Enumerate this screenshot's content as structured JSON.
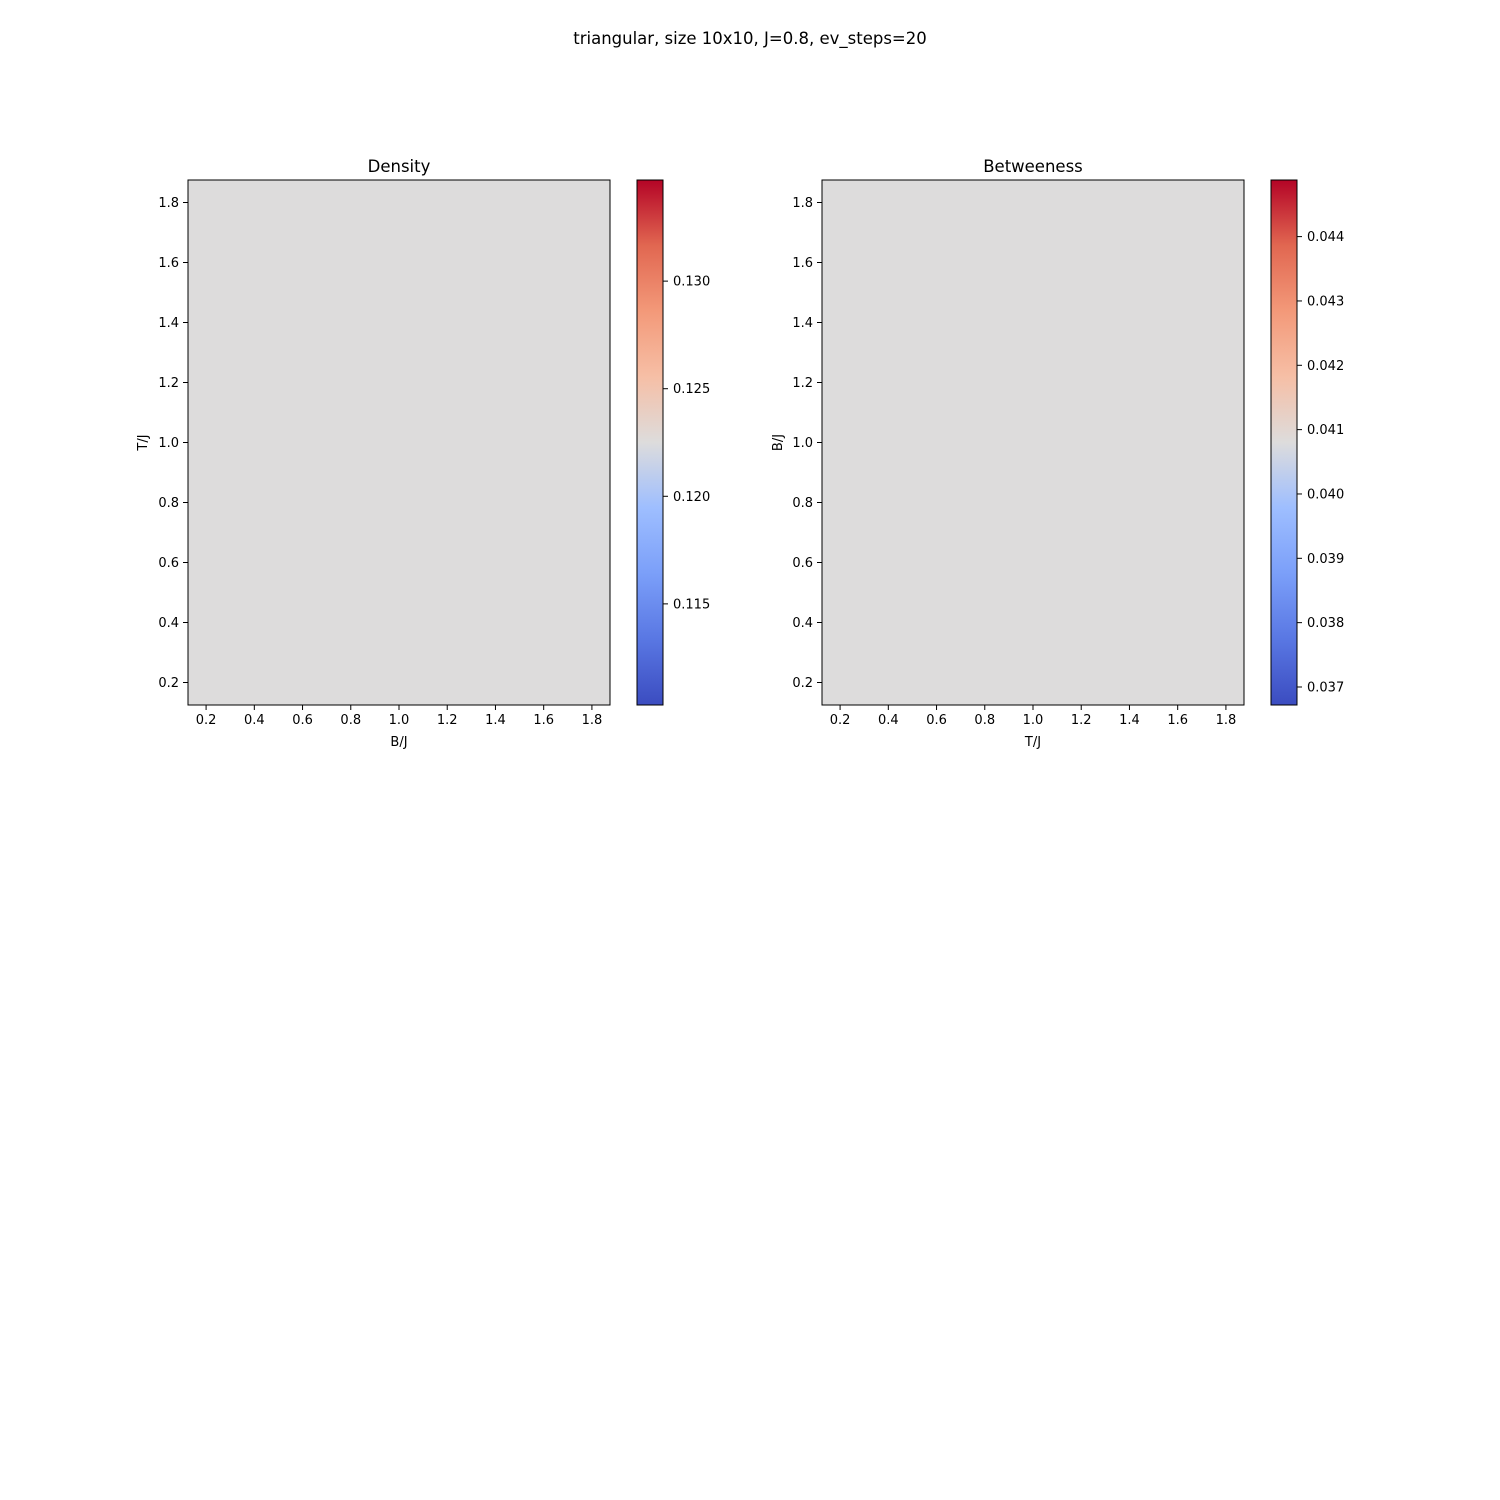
{
  "figure": {
    "suptitle": "triangular, size 10x10, J=0.8, ev_steps=20"
  },
  "chart_data": [
    {
      "type": "heatmap",
      "title": "Density",
      "xlabel": "B/J",
      "ylabel": "T/J",
      "xlim": [
        0.125,
        1.875
      ],
      "ylim": [
        0.125,
        1.875
      ],
      "xticks": [
        0.2,
        0.4,
        0.6,
        0.8,
        1.0,
        1.2,
        1.4,
        1.6,
        1.8
      ],
      "yticks": [
        0.2,
        0.4,
        0.6,
        0.8,
        1.0,
        1.2,
        1.4,
        1.6,
        1.8
      ],
      "xtick_labels": [
        "0.2",
        "0.4",
        "0.6",
        "0.8",
        "1.0",
        "1.2",
        "1.4",
        "1.6",
        "1.8"
      ],
      "ytick_labels": [
        "0.2",
        "0.4",
        "0.6",
        "0.8",
        "1.0",
        "1.2",
        "1.4",
        "1.6",
        "1.8"
      ],
      "uniform_value": 0.1225,
      "fill_color": "#dddcdc",
      "colormap": "coolwarm",
      "colorbar": {
        "range": [
          0.1103,
          0.1347
        ],
        "ticks": [
          0.115,
          0.12,
          0.125,
          0.13
        ],
        "tick_labels": [
          "0.115",
          "0.120",
          "0.125",
          "0.130"
        ]
      },
      "grid": false
    },
    {
      "type": "heatmap",
      "title": "Betweeness",
      "xlabel": "T/J",
      "ylabel": "B/J",
      "xlim": [
        0.125,
        1.875
      ],
      "ylim": [
        0.125,
        1.875
      ],
      "xticks": [
        0.2,
        0.4,
        0.6,
        0.8,
        1.0,
        1.2,
        1.4,
        1.6,
        1.8
      ],
      "yticks": [
        0.2,
        0.4,
        0.6,
        0.8,
        1.0,
        1.2,
        1.4,
        1.6,
        1.8
      ],
      "xtick_labels": [
        "0.2",
        "0.4",
        "0.6",
        "0.8",
        "1.0",
        "1.2",
        "1.4",
        "1.6",
        "1.8"
      ],
      "ytick_labels": [
        "0.2",
        "0.4",
        "0.6",
        "0.8",
        "1.0",
        "1.2",
        "1.4",
        "1.6",
        "1.8"
      ],
      "uniform_value": 0.0408,
      "fill_color": "#dddcdc",
      "colormap": "coolwarm",
      "colorbar": {
        "range": [
          0.03672,
          0.04488
        ],
        "ticks": [
          0.037,
          0.038,
          0.039,
          0.04,
          0.041,
          0.042,
          0.043,
          0.044
        ],
        "tick_labels": [
          "0.037",
          "0.038",
          "0.039",
          "0.040",
          "0.041",
          "0.042",
          "0.043",
          "0.044"
        ]
      },
      "grid": false
    }
  ]
}
